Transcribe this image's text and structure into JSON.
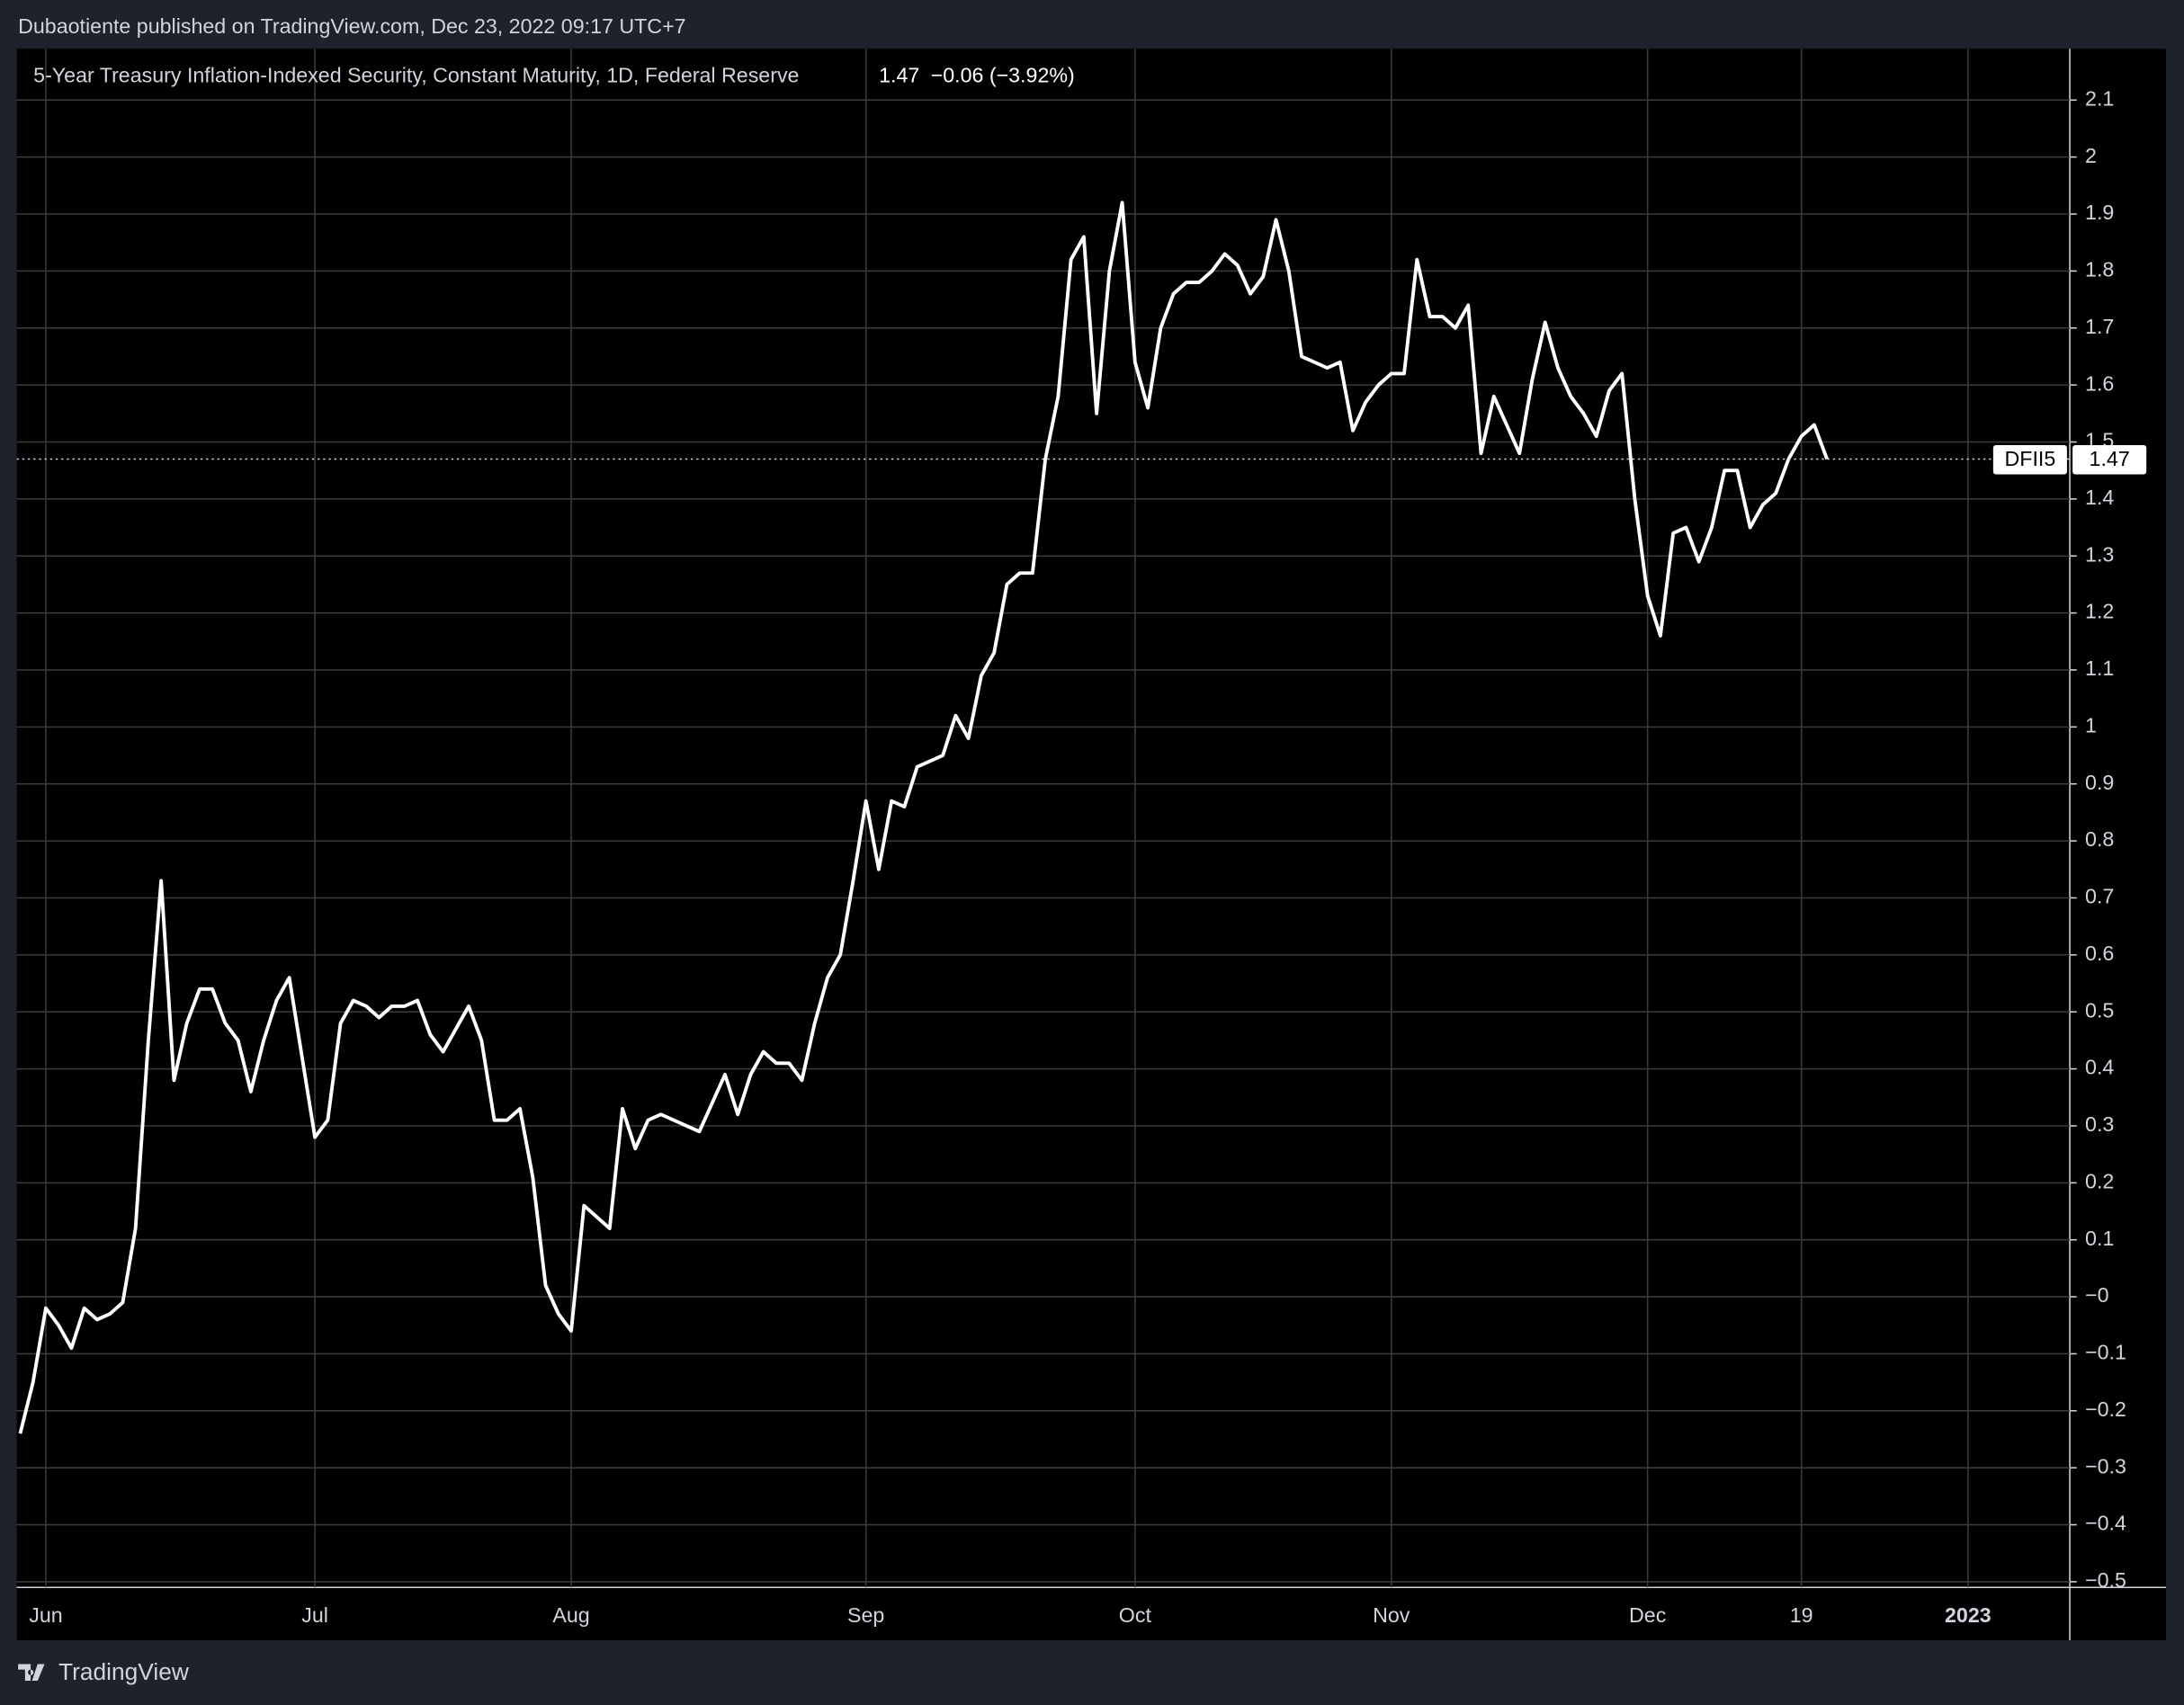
{
  "header": {
    "text": "Dubaotiente published on TradingView.com, Dec 23, 2022 09:17 UTC+7"
  },
  "footer": {
    "brand": "TradingView"
  },
  "chart_data": {
    "type": "line",
    "title": "5-Year Treasury Inflation-Indexed Security, Constant Maturity, 1D, Federal Reserve",
    "last_value": 1.47,
    "change": "−0.06 (−3.92%)",
    "symbol": "DFII5",
    "categories": [
      null,
      null,
      "Jun",
      null,
      null,
      null,
      null,
      null,
      null,
      null,
      null,
      null,
      null,
      null,
      null,
      null,
      null,
      null,
      null,
      null,
      null,
      null,
      null,
      "Jul",
      null,
      null,
      null,
      null,
      null,
      null,
      null,
      null,
      null,
      null,
      null,
      null,
      null,
      null,
      null,
      null,
      null,
      null,
      null,
      "Aug",
      null,
      null,
      null,
      null,
      null,
      null,
      null,
      null,
      null,
      null,
      null,
      null,
      null,
      null,
      null,
      null,
      null,
      null,
      null,
      null,
      null,
      null,
      "Sep",
      null,
      null,
      null,
      null,
      null,
      null,
      null,
      null,
      null,
      null,
      null,
      null,
      null,
      null,
      null,
      null,
      null,
      null,
      null,
      null,
      "Oct",
      null,
      null,
      null,
      null,
      null,
      null,
      null,
      null,
      null,
      null,
      null,
      null,
      null,
      null,
      null,
      null,
      null,
      null,
      null,
      "Nov",
      null,
      null,
      null,
      null,
      null,
      null,
      null,
      null,
      null,
      null,
      null,
      null,
      null,
      null,
      null,
      null,
      null,
      null,
      null,
      "Dec",
      null,
      null,
      null,
      null,
      null,
      null,
      null,
      null,
      null,
      null,
      null,
      "19",
      null,
      null,
      null,
      null,
      null,
      null,
      null,
      null,
      null,
      null,
      null,
      null,
      "2023"
    ],
    "series": [
      {
        "name": "DFII5",
        "color": "#ffffff",
        "values": [
          -0.24,
          -0.15,
          -0.02,
          -0.05,
          -0.09,
          -0.02,
          -0.04,
          -0.03,
          -0.01,
          0.12,
          0.45,
          0.73,
          0.38,
          0.48,
          0.54,
          0.54,
          0.48,
          0.45,
          0.36,
          0.45,
          0.52,
          0.56,
          0.42,
          0.28,
          0.31,
          0.48,
          0.52,
          0.51,
          0.49,
          0.51,
          0.51,
          0.52,
          0.46,
          0.43,
          0.47,
          0.51,
          0.45,
          0.31,
          0.31,
          0.33,
          0.21,
          0.02,
          -0.03,
          -0.06,
          0.16,
          0.14,
          0.12,
          0.33,
          0.26,
          0.31,
          0.32,
          0.31,
          0.3,
          0.29,
          0.34,
          0.39,
          0.32,
          0.39,
          0.43,
          0.41,
          0.41,
          0.38,
          0.48,
          0.56,
          0.6,
          0.73,
          0.87,
          0.75,
          0.87,
          0.86,
          0.93,
          0.94,
          0.95,
          1.02,
          0.98,
          1.09,
          1.13,
          1.25,
          1.27,
          1.27,
          1.47,
          1.58,
          1.82,
          1.86,
          1.55,
          1.8,
          1.92,
          1.64,
          1.56,
          1.7,
          1.76,
          1.78,
          1.78,
          1.8,
          1.83,
          1.81,
          1.76,
          1.79,
          1.89,
          1.8,
          1.65,
          1.64,
          1.63,
          1.64,
          1.52,
          1.57,
          1.6,
          1.62,
          1.62,
          1.82,
          1.72,
          1.72,
          1.7,
          1.74,
          1.48,
          1.58,
          1.53,
          1.48,
          1.61,
          1.71,
          1.63,
          1.58,
          1.55,
          1.51,
          1.59,
          1.62,
          1.4,
          1.23,
          1.16,
          1.34,
          1.35,
          1.29,
          1.35,
          1.45,
          1.45,
          1.35,
          1.39,
          1.41,
          1.47,
          1.51,
          1.53,
          1.47,
          null,
          null,
          null,
          null,
          null,
          null,
          null,
          null,
          null,
          null,
          null
        ]
      }
    ],
    "ylim": [
      -0.51,
      2.19
    ],
    "yticks": [
      2.1,
      2,
      1.9,
      1.8,
      1.7,
      1.6,
      1.5,
      1.4,
      1.3,
      1.2,
      1.1,
      1,
      0.9,
      0.8,
      0.7,
      0.6,
      0.5,
      0.4,
      0.3,
      0.2,
      0.1,
      {
        "value": 0,
        "label": "−0"
      },
      {
        "value": -0.1,
        "label": "−0.1"
      },
      {
        "value": -0.2,
        "label": "−0.2"
      },
      {
        "value": -0.3,
        "label": "−0.3"
      },
      {
        "value": -0.4,
        "label": "−0.4"
      },
      {
        "value": -0.5,
        "label": "−0.5"
      }
    ],
    "grid": true
  }
}
